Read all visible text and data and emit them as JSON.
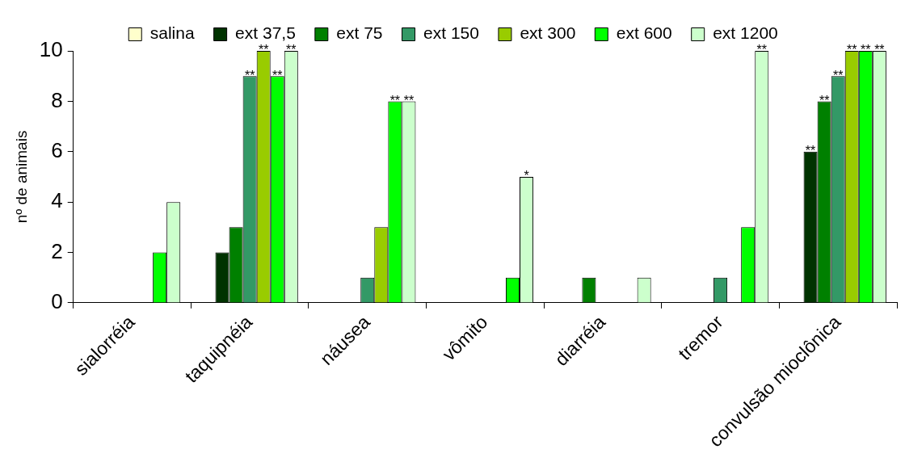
{
  "chart_data": {
    "type": "bar",
    "ylabel": "nº de animais",
    "categories": [
      "sialorréia",
      "taquipnéia",
      "náusea",
      "vômito",
      "diarréia",
      "tremor",
      "convulsão mioclônica"
    ],
    "ylim": [
      0,
      10
    ],
    "yticks": [
      0,
      2,
      4,
      6,
      8,
      10
    ],
    "legend": "top",
    "series": [
      {
        "name": "salina",
        "color": "#ffffcc",
        "values": [
          0,
          0,
          0,
          0,
          0,
          0,
          0
        ]
      },
      {
        "name": "ext 37,5",
        "color": "#003300",
        "values": [
          0,
          2,
          0,
          0,
          0,
          0,
          6
        ],
        "value_labels": [
          null,
          null,
          null,
          null,
          null,
          null,
          "**"
        ]
      },
      {
        "name": "ext 75",
        "color": "#008000",
        "values": [
          0,
          3,
          0,
          0,
          1,
          0,
          8
        ],
        "value_labels": [
          null,
          null,
          null,
          null,
          null,
          null,
          "**"
        ]
      },
      {
        "name": "ext 150",
        "color": "#339966",
        "values": [
          0,
          9,
          1,
          0,
          0,
          1,
          9
        ],
        "value_labels": [
          null,
          "**",
          null,
          null,
          null,
          null,
          "**"
        ]
      },
      {
        "name": "ext 300",
        "color": "#99cc00",
        "values": [
          0,
          10,
          3,
          0,
          0,
          0,
          10
        ],
        "value_labels": [
          null,
          "**",
          null,
          null,
          null,
          null,
          "**"
        ]
      },
      {
        "name": "ext 600",
        "color": "#00ff00",
        "values": [
          2,
          9,
          8,
          1,
          0,
          3,
          10
        ],
        "value_labels": [
          null,
          "**",
          "**",
          null,
          null,
          null,
          "**"
        ]
      },
      {
        "name": "ext 1200",
        "color": "#ccffcc",
        "values": [
          4,
          10,
          8,
          5,
          1,
          10,
          10
        ],
        "value_labels": [
          null,
          "**",
          "**",
          "*",
          null,
          "**",
          "**"
        ]
      }
    ]
  }
}
